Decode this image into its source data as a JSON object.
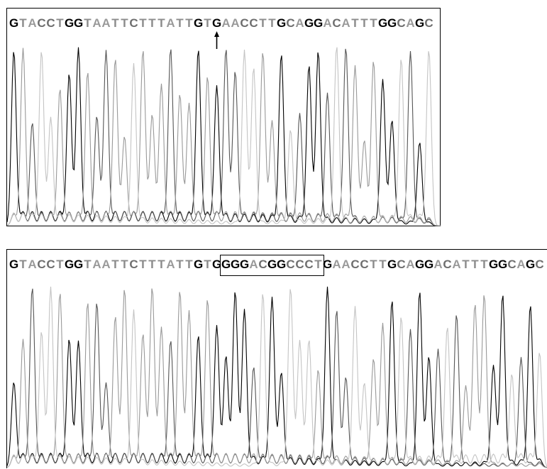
{
  "panels": [
    {
      "id": "top",
      "sequence": "GTACCTGGTAATTCTTTATTGTGAACCTTGCAGGACATTTGGCAGC",
      "annotation": {
        "type": "arrow",
        "base_index": 22
      }
    },
    {
      "id": "bottom",
      "sequence": "GTACCTGGTAATTCTTTATTGTGGGGACGGCCCTGAACCTTGCAGGACATTTGGCAGC",
      "annotation": {
        "type": "box",
        "start_index": 22,
        "end_index": 34
      }
    }
  ],
  "base_colors": {
    "G": "#000000",
    "T": "#8c8c8c",
    "A": "#9a9a9a",
    "C": "#6e6e6e"
  },
  "trace_colors": {
    "G": "#000000",
    "A": "#555555",
    "T": "#999999",
    "C": "#c4c4c4"
  }
}
